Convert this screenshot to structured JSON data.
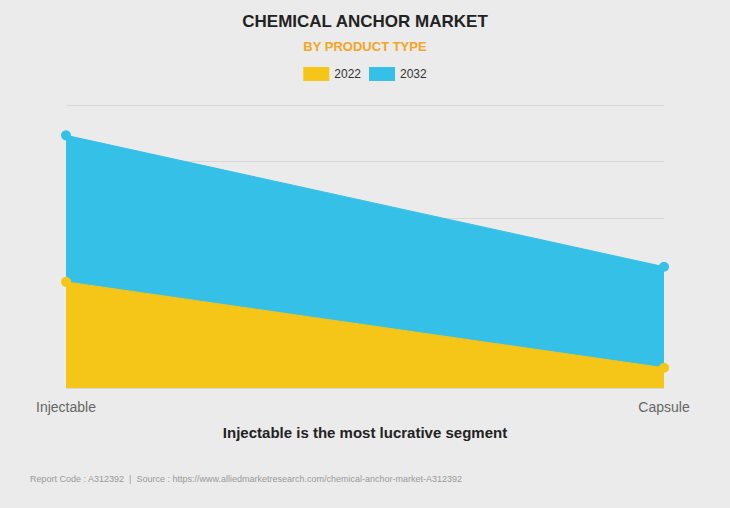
{
  "chart_data": {
    "type": "area",
    "title": "CHEMICAL ANCHOR MARKET",
    "subtitle": "BY PRODUCT TYPE",
    "annotations": [
      "Injectable is the most lucrative segment",
      "Report Code : A312392  |  Source : https://www.alliedmarketresearch.com/chemical-anchor-market-A312392"
    ],
    "categories": [
      "Injectable",
      "Capsule"
    ],
    "series": [
      {
        "name": "2022",
        "color": "#F5C518",
        "values": [
          0.42,
          0.08
        ]
      },
      {
        "name": "2032",
        "color": "#35C0E8",
        "values": [
          1.0,
          0.48
        ]
      }
    ],
    "ylim": [
      0,
      1.12
    ],
    "yticks": [
      0,
      0.224,
      0.448,
      0.672,
      0.896,
      1.12
    ],
    "grid": true,
    "legend": "top",
    "tick_labels": "x",
    "marker": "circle"
  }
}
